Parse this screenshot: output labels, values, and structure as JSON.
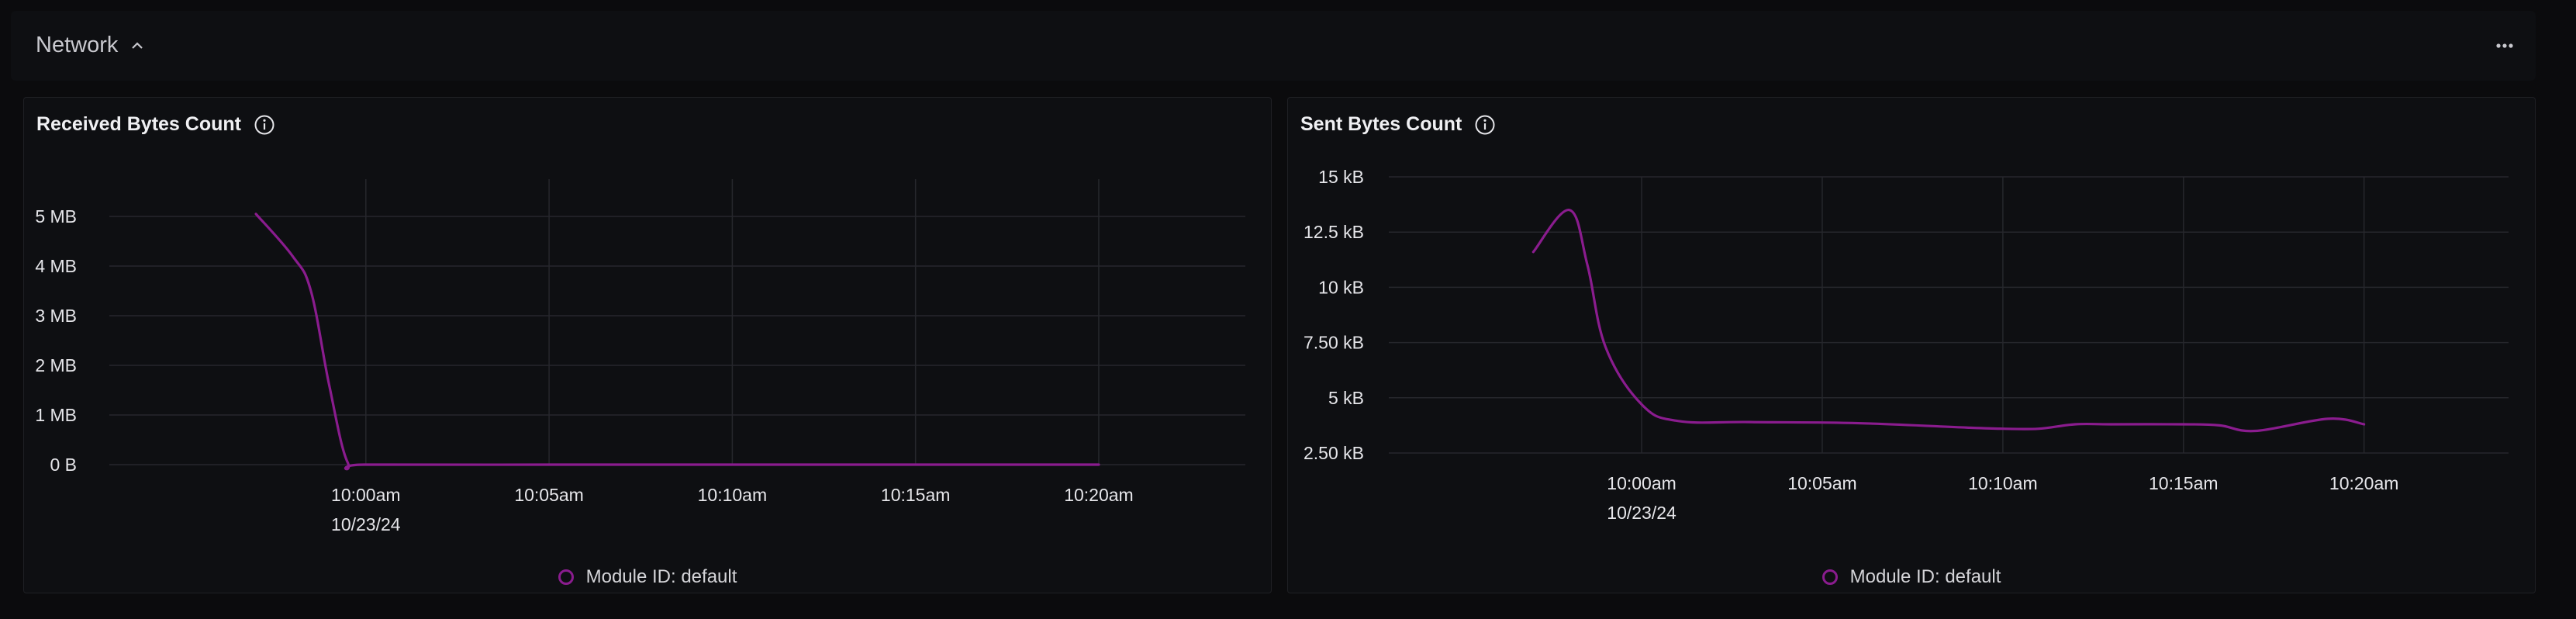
{
  "section": {
    "title": "Network",
    "collapse_icon": "chevron-up-icon",
    "menu_icon": "more-horizontal-icon"
  },
  "colors": {
    "series": "#8a1c8e",
    "grid": "#26272c",
    "tick_text": "#e6e6ea"
  },
  "chart_data": [
    {
      "type": "line",
      "title": "Received Bytes Count",
      "info_icon": "info-icon",
      "x_ticks": [
        "10:00am",
        "10:05am",
        "10:10am",
        "10:15am",
        "10:20am"
      ],
      "x_date_label": "10/23/24",
      "y_ticks": [
        "0 B",
        "1 MB",
        "2 MB",
        "3 MB",
        "4 MB",
        "5 MB"
      ],
      "ylim": [
        0,
        5.75
      ],
      "xlim": [
        "09:53am",
        "10:24am"
      ],
      "unit": "MB",
      "grid": true,
      "legend_position": "bottom-center",
      "series": [
        {
          "name": "Module ID: default",
          "points": [
            {
              "x": "09:57am",
              "y": 5.05
            },
            {
              "x": "09:58am",
              "y": 4.2
            },
            {
              "x": "09:58:30am",
              "y": 3.5
            },
            {
              "x": "09:59am",
              "y": 1.6
            },
            {
              "x": "09:59:30am",
              "y": 0.05
            },
            {
              "x": "10:00am",
              "y": 0
            },
            {
              "x": "10:05am",
              "y": 0
            },
            {
              "x": "10:10am",
              "y": 0
            },
            {
              "x": "10:15am",
              "y": 0
            },
            {
              "x": "10:20am",
              "y": 0
            }
          ]
        }
      ]
    },
    {
      "type": "line",
      "title": "Sent Bytes Count",
      "info_icon": "info-icon",
      "x_ticks": [
        "10:00am",
        "10:05am",
        "10:10am",
        "10:15am",
        "10:20am"
      ],
      "x_date_label": "10/23/24",
      "y_ticks": [
        "2.50 kB",
        "5 kB",
        "7.50 kB",
        "10 kB",
        "12.5 kB",
        "15 kB"
      ],
      "ylim": [
        2.5,
        15
      ],
      "xlim": [
        "09:53am",
        "10:24am"
      ],
      "unit": "kB",
      "grid": true,
      "legend_position": "bottom-center",
      "series": [
        {
          "name": "Module ID: default",
          "points": [
            {
              "x": "09:57am",
              "y": 11.6
            },
            {
              "x": "09:58am",
              "y": 13.5
            },
            {
              "x": "09:58:30am",
              "y": 11.0
            },
            {
              "x": "09:59am",
              "y": 7.3
            },
            {
              "x": "10:00am",
              "y": 4.7
            },
            {
              "x": "10:01am",
              "y": 3.95
            },
            {
              "x": "10:03am",
              "y": 3.9
            },
            {
              "x": "10:06am",
              "y": 3.85
            },
            {
              "x": "10:09am",
              "y": 3.65
            },
            {
              "x": "10:10am",
              "y": 3.6
            },
            {
              "x": "10:11am",
              "y": 3.6
            },
            {
              "x": "10:12am",
              "y": 3.8
            },
            {
              "x": "10:13am",
              "y": 3.8
            },
            {
              "x": "10:15am",
              "y": 3.8
            },
            {
              "x": "10:16am",
              "y": 3.75
            },
            {
              "x": "10:17am",
              "y": 3.5
            },
            {
              "x": "10:19am",
              "y": 4.05
            },
            {
              "x": "10:20am",
              "y": 3.8
            }
          ]
        }
      ]
    }
  ]
}
